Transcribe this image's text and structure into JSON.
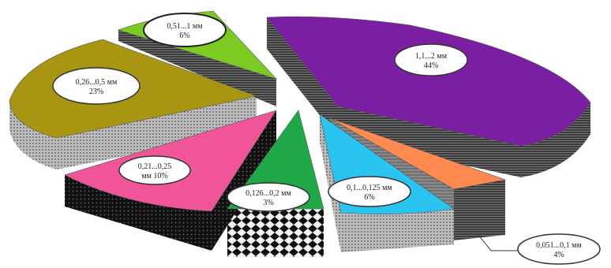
{
  "chart_data": {
    "type": "pie",
    "title": "",
    "style": "3d-exploded",
    "slices": [
      {
        "label": "1,1...2 мм",
        "pct_text": "44%",
        "value": 44,
        "color": "#7B1FA2"
      },
      {
        "label": "0,051...0,1 мм",
        "pct_text": "4%",
        "value": 4,
        "color": "#FF8A50"
      },
      {
        "label": "0,1...0,125 мм",
        "pct_text": "6%",
        "value": 6,
        "color": "#29C5F0"
      },
      {
        "label": "0,126...0,2 мм",
        "pct_text": "3%",
        "value": 3,
        "color": "#1FA846"
      },
      {
        "label": "0,21...0,25",
        "label2": "мм 10%",
        "pct_text": "10%",
        "value": 10,
        "color": "#F0559A"
      },
      {
        "label": "0,26...0,5 мм",
        "pct_text": "23%",
        "value": 23,
        "color": "#A89612"
      },
      {
        "label": "0,51...1 мм",
        "pct_text": "6%",
        "value": 6,
        "color": "#7DCB22"
      }
    ]
  }
}
